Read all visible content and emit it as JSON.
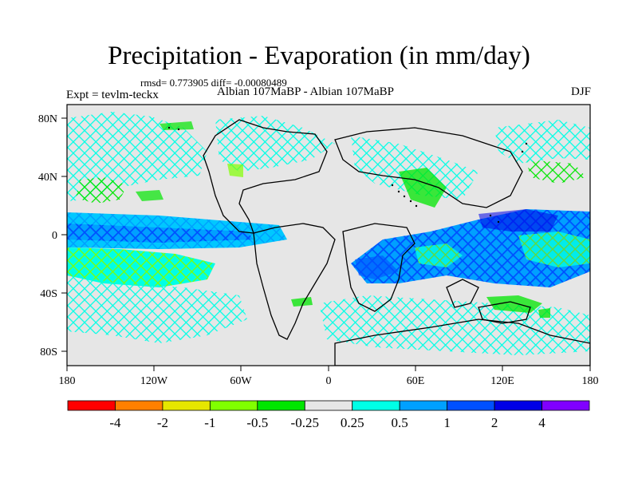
{
  "title": "Precipitation - Evaporation (in mm/day)",
  "stats_text": "rmsd= 0.773905 diff= -0.00080489",
  "experiment_text": "Expt = tevlm-teckx",
  "comparison_text": "Albian  107MaBP - Albian  107MaBP",
  "season": "DJF",
  "axes": {
    "x_ticks": [
      "180",
      "120W",
      "60W",
      "0",
      "60E",
      "120E",
      "180"
    ],
    "y_ticks": [
      "80N",
      "40N",
      "0",
      "40S",
      "80S"
    ]
  },
  "colorbar": {
    "colors": [
      "#ff0000",
      "#ff8000",
      "#e6e600",
      "#80ff00",
      "#00e600",
      "#e6e6e6",
      "#00ffe6",
      "#00a0ff",
      "#0050ff",
      "#0000e6",
      "#8000ff"
    ],
    "labels": [
      "-4",
      "-2",
      "-1",
      "-0.5",
      "-0.25",
      "0.25",
      "0.5",
      "1",
      "2",
      "4"
    ]
  },
  "map": {
    "background_color": "#e6e6e6",
    "zones": [
      {
        "name": "itcz-band-deep",
        "level": "2",
        "color": "#0050ff"
      },
      {
        "name": "itcz-band-mid",
        "level": "1",
        "color": "#00a0ff"
      },
      {
        "name": "subtropical-dry-south",
        "level": "-0.5",
        "color": "#80ff00"
      },
      {
        "name": "wet-extratropics",
        "level": "0.25",
        "color": "#00ffe6"
      },
      {
        "name": "tethys-wet-core",
        "level": "4",
        "color": "#0000e6"
      }
    ]
  }
}
